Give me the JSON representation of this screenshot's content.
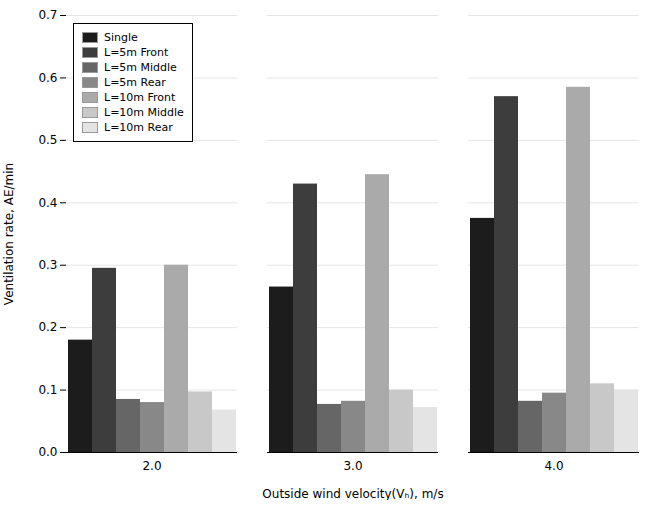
{
  "chart_data": {
    "type": "bar",
    "categories": [
      "2.0",
      "3.0",
      "4.0"
    ],
    "series": [
      {
        "name": "Single",
        "color": "#1c1c1c",
        "values": [
          0.18,
          0.265,
          0.375
        ]
      },
      {
        "name": "L=5m Front",
        "color": "#3d3d3d",
        "values": [
          0.295,
          0.43,
          0.57
        ]
      },
      {
        "name": "L=5m Middle",
        "color": "#666666",
        "values": [
          0.085,
          0.077,
          0.082
        ]
      },
      {
        "name": "L=5m Rear",
        "color": "#888888",
        "values": [
          0.08,
          0.082,
          0.095
        ]
      },
      {
        "name": "L=10m Front",
        "color": "#aaaaaa",
        "values": [
          0.3,
          0.445,
          0.585
        ]
      },
      {
        "name": "L=10m Middle",
        "color": "#c8c8c8",
        "values": [
          0.097,
          0.1,
          0.11
        ]
      },
      {
        "name": "L=10m Rear",
        "color": "#e4e4e4",
        "values": [
          0.068,
          0.072,
          0.1
        ]
      }
    ],
    "xlabel": "Outside wind velocity(Vₕ), m/s",
    "ylabel": "Ventilation rate, AE/min",
    "ylim": [
      0,
      0.7
    ],
    "yticks": [
      {
        "value": 0,
        "label": "0.0"
      },
      0.1,
      0.2,
      0.3,
      0.4,
      0.5,
      0.6,
      0.7
    ],
    "grid": true,
    "legend": "upper left"
  }
}
